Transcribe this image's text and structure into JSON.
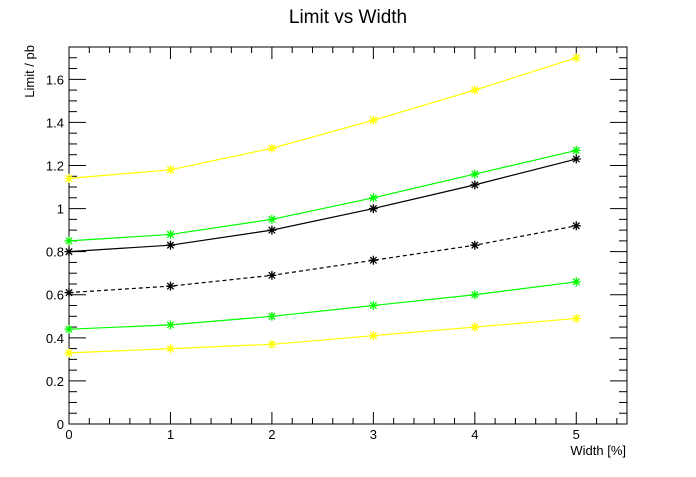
{
  "chart_data": {
    "type": "line",
    "title": "Limit vs Width",
    "xlabel": "Width [%]",
    "ylabel": "Limit / pb",
    "xlim": [
      0,
      5.5
    ],
    "ylim": [
      0,
      1.75
    ],
    "x_ticks": [
      "0",
      "1",
      "2",
      "3",
      "4",
      "5"
    ],
    "y_ticks": [
      "0",
      "0.2",
      "0.4",
      "0.6",
      "0.8",
      "1",
      "1.2",
      "1.4",
      "1.6"
    ],
    "x": [
      0,
      1,
      2,
      3,
      4,
      5
    ],
    "grid": false,
    "series": [
      {
        "color": "#ffff00",
        "dashed": false,
        "values": [
          1.14,
          1.18,
          1.28,
          1.41,
          1.55,
          1.7
        ]
      },
      {
        "color": "#00ff00",
        "dashed": false,
        "values": [
          0.85,
          0.88,
          0.95,
          1.05,
          1.16,
          1.27
        ]
      },
      {
        "color": "#000000",
        "dashed": false,
        "values": [
          0.8,
          0.83,
          0.9,
          1.0,
          1.11,
          1.23
        ]
      },
      {
        "color": "#000000",
        "dashed": true,
        "values": [
          0.61,
          0.64,
          0.69,
          0.76,
          0.83,
          0.92
        ]
      },
      {
        "color": "#00ff00",
        "dashed": false,
        "values": [
          0.44,
          0.46,
          0.5,
          0.55,
          0.6,
          0.66
        ]
      },
      {
        "color": "#ffff00",
        "dashed": false,
        "values": [
          0.33,
          0.35,
          0.37,
          0.41,
          0.45,
          0.49
        ]
      }
    ]
  }
}
